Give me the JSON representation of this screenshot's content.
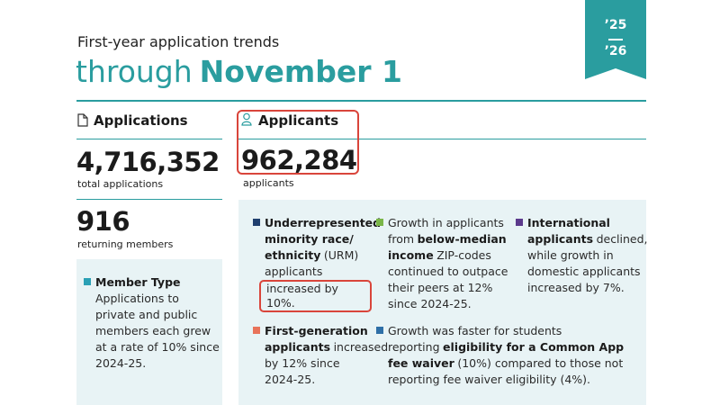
{
  "badge": {
    "top": "’25",
    "bottom": "’26"
  },
  "header": {
    "subtitle": "First-year application trends",
    "title_prefix": "through",
    "title_bold": "November 1"
  },
  "applications": {
    "heading": "Applications",
    "total": "4,716,352",
    "total_label": "total applications",
    "returning": "916",
    "returning_label": "returning members"
  },
  "member_type": {
    "color": "#2aa0b5",
    "heading": "Member Type",
    "text": "Applications to private and public members each grew at a rate of 10% since 2024-25."
  },
  "applicants": {
    "heading": "Applicants",
    "total": "962,284",
    "total_label": "applicants"
  },
  "notes": [
    {
      "color": "#1f3f6e",
      "segments": [
        {
          "text": "Underrepresented minority race/ ethnicity",
          "bold": true
        },
        {
          "text": "(URM) applicants",
          "bold": false
        },
        {
          "text": "increased by 10%.",
          "bold": false,
          "highlight": true
        }
      ]
    },
    {
      "color": "#7ab648",
      "segments": [
        {
          "text": "Growth in applicants from",
          "bold": false
        },
        {
          "text": "below-median income",
          "bold": true
        },
        {
          "text": "ZIP-codes continued to outpace their peers at 12% since 2024-25.",
          "bold": false
        }
      ]
    },
    {
      "color": "#5b3a8c",
      "segments": [
        {
          "text": "International applicants",
          "bold": true
        },
        {
          "text": "declined, while growth in domestic applicants increased by 7%.",
          "bold": false
        }
      ]
    },
    {
      "color": "#e8735a",
      "segments": [
        {
          "text": "First-generation applicants",
          "bold": true
        },
        {
          "text": "increased by 12% since 2024-25.",
          "bold": false
        }
      ]
    },
    {
      "color": "#2e6fa7",
      "segments": [
        {
          "text": "Growth was faster for students reporting",
          "bold": false
        },
        {
          "text": "eligibility for a Common App fee waiver",
          "bold": true
        },
        {
          "text": "(10%) compared to those not reporting fee waiver eligibility (4%).",
          "bold": false
        }
      ]
    }
  ]
}
